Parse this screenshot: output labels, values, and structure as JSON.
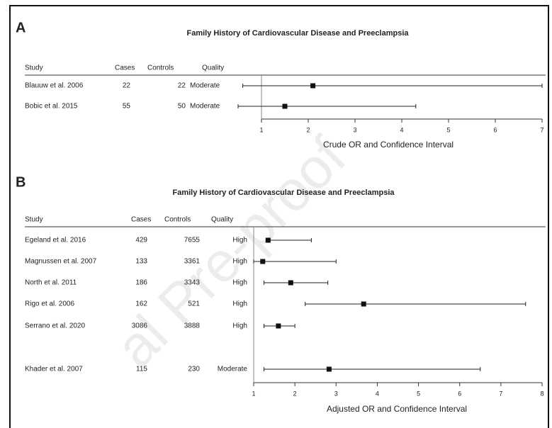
{
  "chart_data": [
    {
      "type": "forest",
      "label": "A",
      "title": "Family History of Cardiovascular Disease and Preeclampsia",
      "columns": [
        "Study",
        "Cases",
        "Controls",
        "Quality"
      ],
      "rows": [
        [
          "Blauuw et al. 2006",
          22,
          22,
          "Moderate"
        ],
        [
          "Bobic et al. 2015",
          55,
          50,
          "Moderate"
        ]
      ],
      "values": [
        2.1,
        1.5
      ],
      "lower": [
        0.6,
        0.5
      ],
      "upper": [
        7.0,
        4.3
      ],
      "xlim": [
        1,
        7
      ],
      "xticks": [
        1,
        2,
        3,
        4,
        5,
        6,
        7
      ],
      "xlabel": "Crude OR and Confidence Interval"
    },
    {
      "type": "forest",
      "label": "B",
      "title": "Family History of Cardiovascular Disease and Preeclampsia",
      "columns": [
        "Study",
        "Cases",
        "Controls",
        "Quality"
      ],
      "rows": [
        [
          "Egeland et al. 2016",
          429,
          7655,
          "High"
        ],
        [
          "Magnussen et al. 2007",
          133,
          3361,
          "High"
        ],
        [
          "North et al. 2011",
          186,
          3343,
          "High"
        ],
        [
          "Rigo et al. 2006",
          162,
          521,
          "High"
        ],
        [
          "Serrano et al. 2020",
          3086,
          3888,
          "High"
        ],
        [
          "Khader et al. 2007",
          115,
          230,
          "Moderate"
        ]
      ],
      "values": [
        1.35,
        1.22,
        1.9,
        3.67,
        1.6,
        2.83
      ],
      "lower": [
        1.3,
        1.0,
        1.25,
        2.25,
        1.25,
        1.25
      ],
      "upper": [
        2.4,
        3.0,
        2.8,
        7.6,
        2.0,
        6.5
      ],
      "xlim": [
        1,
        8
      ],
      "xticks": [
        1,
        2,
        3,
        4,
        5,
        6,
        7,
        8
      ],
      "xlabel": "Adjusted OR and Confidence Interval"
    }
  ],
  "watermark": "al Pre-proof"
}
